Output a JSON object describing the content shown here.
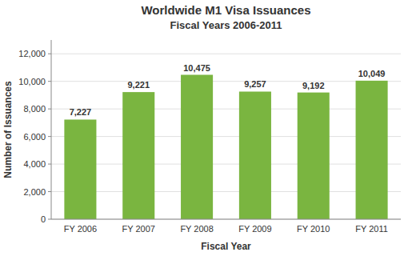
{
  "chart_data": {
    "type": "bar",
    "title": "Worldwide M1 Visa Issuances",
    "subtitle": "Fiscal Years 2006-2011",
    "x_label": "Fiscal Year",
    "y_label": "Number of Issuances",
    "categories": [
      "FY 2006",
      "FY 2007",
      "FY 2008",
      "FY 2009",
      "FY 2010",
      "FY 2011"
    ],
    "values": [
      7227,
      9221,
      10475,
      9257,
      9192,
      10049
    ],
    "value_labels": [
      "7,227",
      "9,221",
      "10,475",
      "9,257",
      "9,192",
      "10,049"
    ],
    "color": "#7ab540",
    "ylim": [
      0,
      13000
    ],
    "yticks": [
      0,
      {
        "value": 2000,
        "label": "2,000"
      },
      {
        "value": 4000,
        "label": "4,000"
      },
      {
        "value": 6000,
        "label": "6,000"
      },
      {
        "value": 8000,
        "label": "8,000"
      },
      {
        "value": 10000,
        "label": "10,000"
      },
      {
        "value": 12000,
        "label": "12,000"
      }
    ],
    "grid": true,
    "data_labels": true
  }
}
